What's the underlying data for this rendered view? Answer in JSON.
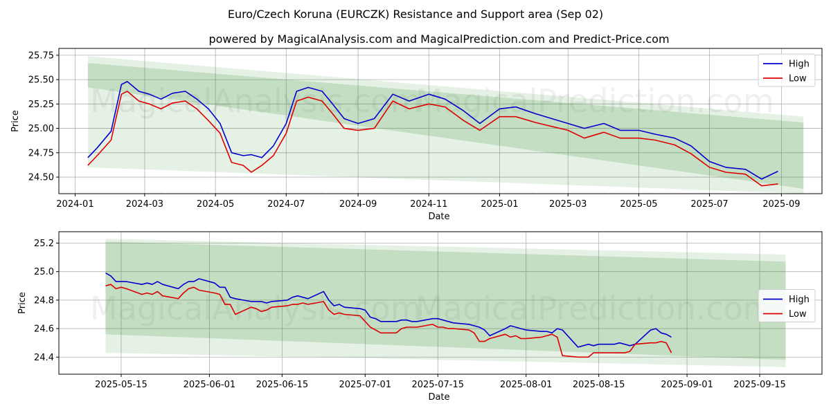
{
  "title": "Euro/Czech Koruna (EURCZK) Resistance and Support area (Sep 02)",
  "subtitle": "powered by MagicalAnalysis.com and MagicalPrediction.com and Predict-Price.com",
  "watermarks": [
    "MagicalAnalysis.com",
    "MagicalPrediction.com"
  ],
  "colors": {
    "high": "#0000cc",
    "low": "#dd0000",
    "band": "#2e8b2e"
  },
  "chart_data": [
    {
      "type": "line",
      "xlabel": "Date",
      "ylabel": "Price",
      "xlim": [
        "2023-12-18",
        "2025-10-06"
      ],
      "ylim": [
        24.33,
        25.82
      ],
      "x_ticks": [
        "2024-01-01",
        "2024-03-01",
        "2024-05-01",
        "2024-07-01",
        "2024-09-01",
        "2024-11-01",
        "2025-01-01",
        "2025-03-01",
        "2025-05-01",
        "2025-07-01",
        "2025-09-01"
      ],
      "x_tick_labels": [
        "2024-01",
        "2024-03",
        "2024-05",
        "2024-07",
        "2024-09",
        "2024-11",
        "2025-01",
        "2025-03",
        "2025-05",
        "2025-07",
        "2025-09"
      ],
      "y_ticks": [
        24.5,
        24.75,
        25.0,
        25.25,
        25.5,
        25.75
      ],
      "y_tick_labels": [
        "24.50",
        "24.75",
        "25.00",
        "25.25",
        "25.50",
        "25.75"
      ],
      "grid": true,
      "legend_position": "top-right",
      "bands": [
        {
          "x": [
            "2024-01-12",
            "2025-09-20"
          ],
          "upper": [
            25.74,
            25.12
          ],
          "lower": [
            24.6,
            24.33
          ],
          "opacity": 0.12
        },
        {
          "x": [
            "2024-01-12",
            "2025-09-20"
          ],
          "upper": [
            25.67,
            25.06
          ],
          "lower": [
            25.42,
            24.38
          ],
          "opacity": 0.18
        }
      ],
      "series": [
        {
          "name": "High",
          "key": "high",
          "x": [
            "2024-01-12",
            "2024-01-20",
            "2024-02-01",
            "2024-02-10",
            "2024-02-15",
            "2024-02-25",
            "2024-03-05",
            "2024-03-15",
            "2024-03-25",
            "2024-04-05",
            "2024-04-15",
            "2024-04-25",
            "2024-05-05",
            "2024-05-15",
            "2024-05-25",
            "2024-06-01",
            "2024-06-10",
            "2024-06-20",
            "2024-07-01",
            "2024-07-10",
            "2024-07-20",
            "2024-08-01",
            "2024-08-10",
            "2024-08-20",
            "2024-09-01",
            "2024-09-15",
            "2024-10-01",
            "2024-10-15",
            "2024-11-01",
            "2024-11-15",
            "2024-12-01",
            "2024-12-15",
            "2025-01-01",
            "2025-01-15",
            "2025-02-01",
            "2025-02-15",
            "2025-03-01",
            "2025-03-15",
            "2025-04-01",
            "2025-04-15",
            "2025-05-01",
            "2025-05-15",
            "2025-06-01",
            "2025-06-15",
            "2025-07-01",
            "2025-07-15",
            "2025-08-01",
            "2025-08-15",
            "2025-08-29"
          ],
          "y": [
            24.7,
            24.8,
            24.97,
            25.45,
            25.48,
            25.38,
            25.35,
            25.3,
            25.36,
            25.38,
            25.3,
            25.2,
            25.05,
            24.75,
            24.72,
            24.73,
            24.7,
            24.82,
            25.05,
            25.38,
            25.42,
            25.38,
            25.25,
            25.1,
            25.05,
            25.1,
            25.35,
            25.28,
            25.35,
            25.3,
            25.18,
            25.05,
            25.2,
            25.22,
            25.15,
            25.1,
            25.05,
            25.0,
            25.05,
            24.98,
            24.98,
            24.94,
            24.9,
            24.82,
            24.66,
            24.6,
            24.58,
            24.48,
            24.56
          ]
        },
        {
          "name": "Low",
          "key": "low",
          "x": [
            "2024-01-12",
            "2024-01-20",
            "2024-02-01",
            "2024-02-10",
            "2024-02-15",
            "2024-02-25",
            "2024-03-05",
            "2024-03-15",
            "2024-03-25",
            "2024-04-05",
            "2024-04-15",
            "2024-04-25",
            "2024-05-05",
            "2024-05-15",
            "2024-05-25",
            "2024-06-01",
            "2024-06-10",
            "2024-06-20",
            "2024-07-01",
            "2024-07-10",
            "2024-07-20",
            "2024-08-01",
            "2024-08-10",
            "2024-08-20",
            "2024-09-01",
            "2024-09-15",
            "2024-10-01",
            "2024-10-15",
            "2024-11-01",
            "2024-11-15",
            "2024-12-01",
            "2024-12-15",
            "2025-01-01",
            "2025-01-15",
            "2025-02-01",
            "2025-02-15",
            "2025-03-01",
            "2025-03-15",
            "2025-04-01",
            "2025-04-15",
            "2025-05-01",
            "2025-05-15",
            "2025-06-01",
            "2025-06-15",
            "2025-07-01",
            "2025-07-15",
            "2025-08-01",
            "2025-08-15",
            "2025-08-29"
          ],
          "y": [
            24.62,
            24.72,
            24.88,
            25.35,
            25.38,
            25.28,
            25.25,
            25.2,
            25.26,
            25.28,
            25.2,
            25.08,
            24.95,
            24.65,
            24.62,
            24.55,
            24.62,
            24.72,
            24.95,
            25.28,
            25.32,
            25.28,
            25.15,
            25.0,
            24.98,
            25.0,
            25.28,
            25.2,
            25.25,
            25.22,
            25.08,
            24.98,
            25.12,
            25.12,
            25.06,
            25.02,
            24.98,
            24.9,
            24.96,
            24.9,
            24.9,
            24.88,
            24.83,
            24.74,
            24.6,
            24.55,
            24.53,
            24.41,
            24.43
          ]
        }
      ]
    },
    {
      "type": "line",
      "xlabel": "Date",
      "ylabel": "Price",
      "xlim": [
        "2025-05-03",
        "2025-09-27"
      ],
      "ylim": [
        24.28,
        25.28
      ],
      "x_ticks": [
        "2025-05-15",
        "2025-06-01",
        "2025-06-15",
        "2025-07-01",
        "2025-07-15",
        "2025-08-01",
        "2025-08-15",
        "2025-09-01",
        "2025-09-15"
      ],
      "x_tick_labels": [
        "2025-05-15",
        "2025-06-01",
        "2025-06-15",
        "2025-07-01",
        "2025-07-15",
        "2025-08-01",
        "2025-08-15",
        "2025-09-01",
        "2025-09-15"
      ],
      "y_ticks": [
        24.4,
        24.6,
        24.8,
        25.0,
        25.2
      ],
      "y_tick_labels": [
        "24.4",
        "24.6",
        "24.8",
        "25.0",
        "25.2"
      ],
      "grid": true,
      "legend_position": "center-right",
      "bands": [
        {
          "x": [
            "2025-05-12",
            "2025-09-20"
          ],
          "upper": [
            25.23,
            25.12
          ],
          "lower": [
            24.43,
            24.33
          ],
          "opacity": 0.12
        },
        {
          "x": [
            "2025-05-12",
            "2025-09-20"
          ],
          "upper": [
            25.21,
            25.07
          ],
          "lower": [
            24.56,
            24.38
          ],
          "opacity": 0.18
        }
      ],
      "series": [
        {
          "name": "High",
          "key": "high",
          "x": [
            "2025-05-12",
            "2025-05-13",
            "2025-05-14",
            "2025-05-15",
            "2025-05-16",
            "2025-05-19",
            "2025-05-20",
            "2025-05-21",
            "2025-05-22",
            "2025-05-23",
            "2025-05-26",
            "2025-05-27",
            "2025-05-28",
            "2025-05-29",
            "2025-05-30",
            "2025-06-02",
            "2025-06-03",
            "2025-06-04",
            "2025-06-05",
            "2025-06-06",
            "2025-06-09",
            "2025-06-10",
            "2025-06-11",
            "2025-06-12",
            "2025-06-13",
            "2025-06-16",
            "2025-06-17",
            "2025-06-18",
            "2025-06-19",
            "2025-06-20",
            "2025-06-23",
            "2025-06-24",
            "2025-06-25",
            "2025-06-26",
            "2025-06-27",
            "2025-06-30",
            "2025-07-01",
            "2025-07-02",
            "2025-07-03",
            "2025-07-04",
            "2025-07-07",
            "2025-07-08",
            "2025-07-09",
            "2025-07-10",
            "2025-07-11",
            "2025-07-14",
            "2025-07-15",
            "2025-07-16",
            "2025-07-17",
            "2025-07-18",
            "2025-07-21",
            "2025-07-22",
            "2025-07-23",
            "2025-07-24",
            "2025-07-25",
            "2025-07-28",
            "2025-07-29",
            "2025-07-30",
            "2025-07-31",
            "2025-08-01",
            "2025-08-04",
            "2025-08-05",
            "2025-08-06",
            "2025-08-07",
            "2025-08-08",
            "2025-08-11",
            "2025-08-12",
            "2025-08-13",
            "2025-08-14",
            "2025-08-15",
            "2025-08-18",
            "2025-08-19",
            "2025-08-20",
            "2025-08-21",
            "2025-08-22",
            "2025-08-25",
            "2025-08-26",
            "2025-08-27",
            "2025-08-28",
            "2025-08-29"
          ],
          "y": [
            24.99,
            24.97,
            24.93,
            24.93,
            24.93,
            24.91,
            24.92,
            24.91,
            24.93,
            24.91,
            24.88,
            24.91,
            24.93,
            24.93,
            24.95,
            24.92,
            24.89,
            24.89,
            24.82,
            24.81,
            24.79,
            24.79,
            24.79,
            24.78,
            24.79,
            24.8,
            24.82,
            24.83,
            24.82,
            24.81,
            24.86,
            24.8,
            24.76,
            24.77,
            24.75,
            24.74,
            24.73,
            24.68,
            24.67,
            24.65,
            24.65,
            24.66,
            24.66,
            24.65,
            24.65,
            24.67,
            24.67,
            24.66,
            24.65,
            24.64,
            24.63,
            24.62,
            24.61,
            24.59,
            24.55,
            24.6,
            24.62,
            24.61,
            24.6,
            24.59,
            24.58,
            24.58,
            24.57,
            24.6,
            24.59,
            24.47,
            24.48,
            24.49,
            24.48,
            24.49,
            24.49,
            24.5,
            24.49,
            24.48,
            24.49,
            24.59,
            24.6,
            24.57,
            24.56,
            24.54
          ]
        },
        {
          "name": "Low",
          "key": "low",
          "x": [
            "2025-05-12",
            "2025-05-13",
            "2025-05-14",
            "2025-05-15",
            "2025-05-16",
            "2025-05-19",
            "2025-05-20",
            "2025-05-21",
            "2025-05-22",
            "2025-05-23",
            "2025-05-26",
            "2025-05-27",
            "2025-05-28",
            "2025-05-29",
            "2025-05-30",
            "2025-06-02",
            "2025-06-03",
            "2025-06-04",
            "2025-06-05",
            "2025-06-06",
            "2025-06-09",
            "2025-06-10",
            "2025-06-11",
            "2025-06-12",
            "2025-06-13",
            "2025-06-16",
            "2025-06-17",
            "2025-06-18",
            "2025-06-19",
            "2025-06-20",
            "2025-06-23",
            "2025-06-24",
            "2025-06-25",
            "2025-06-26",
            "2025-06-27",
            "2025-06-30",
            "2025-07-01",
            "2025-07-02",
            "2025-07-03",
            "2025-07-04",
            "2025-07-07",
            "2025-07-08",
            "2025-07-09",
            "2025-07-10",
            "2025-07-11",
            "2025-07-14",
            "2025-07-15",
            "2025-07-16",
            "2025-07-17",
            "2025-07-18",
            "2025-07-21",
            "2025-07-22",
            "2025-07-23",
            "2025-07-24",
            "2025-07-25",
            "2025-07-28",
            "2025-07-29",
            "2025-07-30",
            "2025-07-31",
            "2025-08-01",
            "2025-08-04",
            "2025-08-05",
            "2025-08-06",
            "2025-08-07",
            "2025-08-08",
            "2025-08-11",
            "2025-08-12",
            "2025-08-13",
            "2025-08-14",
            "2025-08-15",
            "2025-08-18",
            "2025-08-19",
            "2025-08-20",
            "2025-08-21",
            "2025-08-22",
            "2025-08-25",
            "2025-08-26",
            "2025-08-27",
            "2025-08-28",
            "2025-08-29"
          ],
          "y": [
            24.9,
            24.91,
            24.88,
            24.89,
            24.88,
            24.84,
            24.85,
            24.84,
            24.86,
            24.83,
            24.81,
            24.85,
            24.88,
            24.89,
            24.87,
            24.85,
            24.84,
            24.77,
            24.77,
            24.7,
            24.75,
            24.74,
            24.72,
            24.73,
            24.75,
            24.76,
            24.77,
            24.77,
            24.78,
            24.77,
            24.79,
            24.73,
            24.7,
            24.71,
            24.7,
            24.69,
            24.65,
            24.61,
            24.59,
            24.57,
            24.57,
            24.6,
            24.61,
            24.61,
            24.61,
            24.63,
            24.61,
            24.61,
            24.6,
            24.6,
            24.59,
            24.57,
            24.51,
            24.51,
            24.53,
            24.56,
            24.54,
            24.55,
            24.53,
            24.53,
            24.54,
            24.55,
            24.56,
            24.54,
            24.41,
            24.4,
            24.4,
            24.4,
            24.43,
            24.43,
            24.43,
            24.43,
            24.43,
            24.44,
            24.49,
            24.5,
            24.5,
            24.51,
            24.5,
            24.43
          ]
        }
      ]
    }
  ]
}
